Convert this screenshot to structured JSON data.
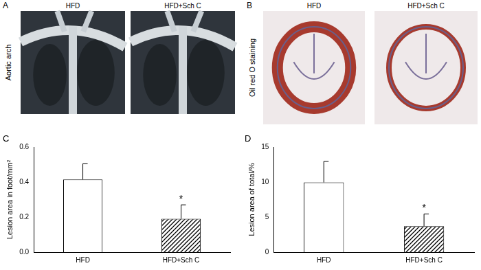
{
  "images": [
    {
      "panel": "A",
      "side_label": "Aortic arch",
      "titles": [
        "HFD",
        "HFD+Sch C"
      ]
    },
    {
      "panel": "B",
      "side_label": "Oil red O staining",
      "titles": [
        "HFD",
        "HFD+Sch C"
      ]
    }
  ],
  "chart_data": [
    {
      "type": "bar",
      "panel": "C",
      "y_label": "Lesion area in foot/mm²",
      "categories": [
        "HFD",
        "HFD+Sch C"
      ],
      "values": [
        0.415,
        0.19
      ],
      "errors": [
        0.09,
        0.08
      ],
      "colors": [
        "#ffffff",
        "#ffffff"
      ],
      "ylim": [
        0,
        0.6
      ],
      "yticks": [
        {
          "value": 0,
          "label": "0.0"
        },
        0.2,
        0.4,
        0.6
      ],
      "grid": false,
      "annotations": [
        {
          "text": "*",
          "category": "HFD+Sch C"
        }
      ]
    },
    {
      "type": "bar",
      "panel": "D",
      "y_label": "Lesion area of total/%",
      "categories": [
        "HFD",
        "HFD+Sch C"
      ],
      "values": [
        9.95,
        3.7
      ],
      "errors": [
        3.0,
        1.75
      ],
      "colors": [
        "#ffffff",
        "#ffffff"
      ],
      "ylim": [
        0,
        15
      ],
      "yticks": [
        0,
        5,
        10,
        15
      ],
      "grid": false,
      "annotations": [
        {
          "text": "*",
          "category": "HFD+Sch C"
        }
      ]
    }
  ]
}
